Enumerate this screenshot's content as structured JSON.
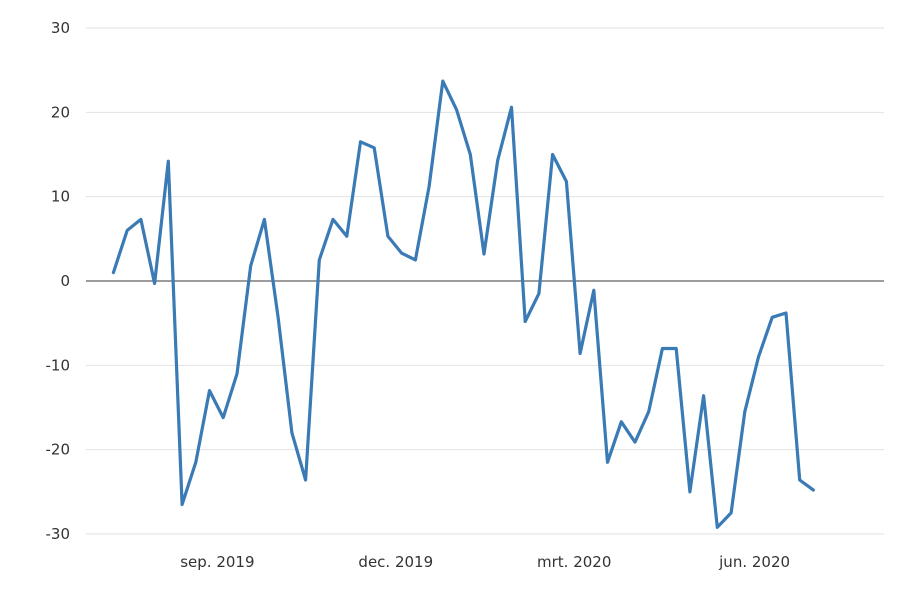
{
  "chart_data": {
    "type": "line",
    "title": "",
    "xlabel": "",
    "ylabel": "",
    "ylim": [
      -30,
      30
    ],
    "yticks": [
      30,
      20,
      10,
      0,
      -10,
      -20,
      -30
    ],
    "xlim": [
      "2019-06-26",
      "2020-08-06"
    ],
    "xticks": [
      {
        "date": "2019-09-01",
        "label": "sep. 2019"
      },
      {
        "date": "2019-12-01",
        "label": "dec. 2019"
      },
      {
        "date": "2020-03-01",
        "label": "mrt. 2020"
      },
      {
        "date": "2020-06-01",
        "label": "jun. 2020"
      }
    ],
    "grid": true,
    "legend": "none",
    "series": [
      {
        "color": "#3a7ab5",
        "points": [
          {
            "x": "2019-07-10",
            "y": 1
          },
          {
            "x": "2019-07-17",
            "y": 6
          },
          {
            "x": "2019-07-24",
            "y": 7.3
          },
          {
            "x": "2019-07-31",
            "y": -0.3
          },
          {
            "x": "2019-08-07",
            "y": 14.2
          },
          {
            "x": "2019-08-14",
            "y": -26.5
          },
          {
            "x": "2019-08-21",
            "y": -21.5
          },
          {
            "x": "2019-08-28",
            "y": -13
          },
          {
            "x": "2019-09-04",
            "y": -16.2
          },
          {
            "x": "2019-09-11",
            "y": -11
          },
          {
            "x": "2019-09-18",
            "y": 1.8
          },
          {
            "x": "2019-09-25",
            "y": 7.3
          },
          {
            "x": "2019-10-02",
            "y": -4.3
          },
          {
            "x": "2019-10-09",
            "y": -18
          },
          {
            "x": "2019-10-16",
            "y": -23.6
          },
          {
            "x": "2019-10-23",
            "y": 2.5
          },
          {
            "x": "2019-10-30",
            "y": 7.3
          },
          {
            "x": "2019-11-06",
            "y": 5.3
          },
          {
            "x": "2019-11-13",
            "y": 16.5
          },
          {
            "x": "2019-11-20",
            "y": 15.8
          },
          {
            "x": "2019-11-27",
            "y": 5.3
          },
          {
            "x": "2019-12-04",
            "y": 3.3
          },
          {
            "x": "2019-12-11",
            "y": 2.5
          },
          {
            "x": "2019-12-18",
            "y": 11.2
          },
          {
            "x": "2019-12-25",
            "y": 23.7
          },
          {
            "x": "2020-01-01",
            "y": 20.3
          },
          {
            "x": "2020-01-08",
            "y": 15
          },
          {
            "x": "2020-01-15",
            "y": 3.2
          },
          {
            "x": "2020-01-22",
            "y": 14.3
          },
          {
            "x": "2020-01-29",
            "y": 20.6
          },
          {
            "x": "2020-02-05",
            "y": -4.8
          },
          {
            "x": "2020-02-12",
            "y": -1.5
          },
          {
            "x": "2020-02-19",
            "y": 15
          },
          {
            "x": "2020-02-26",
            "y": 11.8
          },
          {
            "x": "2020-03-04",
            "y": -8.6
          },
          {
            "x": "2020-03-11",
            "y": -1.1
          },
          {
            "x": "2020-03-18",
            "y": -21.5
          },
          {
            "x": "2020-03-25",
            "y": -16.7
          },
          {
            "x": "2020-04-01",
            "y": -19.1
          },
          {
            "x": "2020-04-08",
            "y": -15.5
          },
          {
            "x": "2020-04-15",
            "y": -8
          },
          {
            "x": "2020-04-22",
            "y": -8
          },
          {
            "x": "2020-04-29",
            "y": -25
          },
          {
            "x": "2020-05-06",
            "y": -13.6
          },
          {
            "x": "2020-05-13",
            "y": -29.2
          },
          {
            "x": "2020-05-20",
            "y": -27.5
          },
          {
            "x": "2020-05-27",
            "y": -15.5
          },
          {
            "x": "2020-06-03",
            "y": -9
          },
          {
            "x": "2020-06-10",
            "y": -4.3
          },
          {
            "x": "2020-06-17",
            "y": -3.8
          },
          {
            "x": "2020-06-24",
            "y": -23.6
          },
          {
            "x": "2020-07-01",
            "y": -24.8
          }
        ]
      }
    ]
  }
}
